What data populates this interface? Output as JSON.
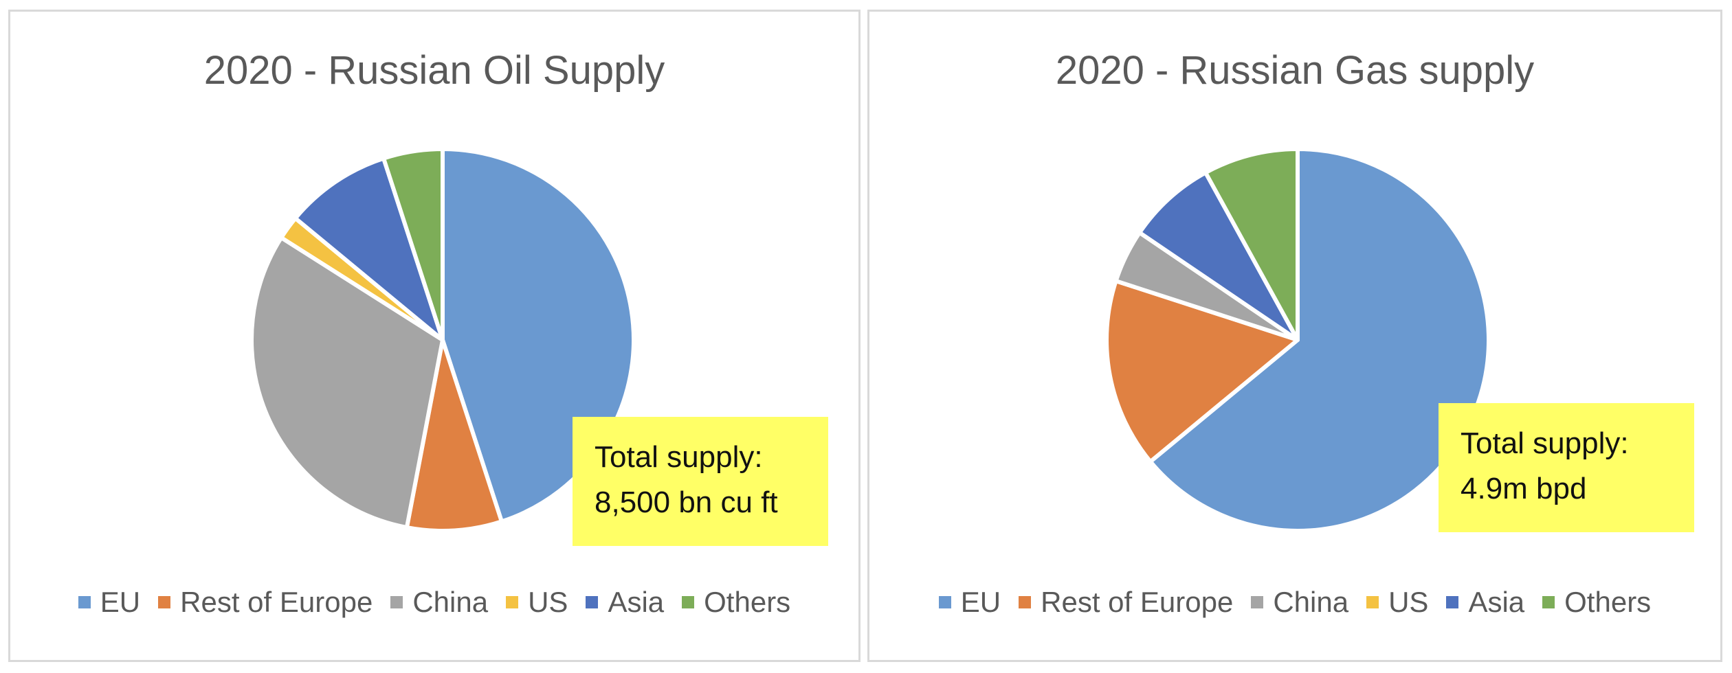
{
  "colors": {
    "EU": "#6a99d0",
    "Rest of Europe": "#e08142",
    "China": "#a5a5a5",
    "US": "#f4c242",
    "Asia": "#4f72be",
    "Others": "#7dad58"
  },
  "chart_data": [
    {
      "type": "pie",
      "title": "2020 - Russian Oil Supply",
      "categories": [
        "EU",
        "Rest of Europe",
        "China",
        "US",
        "Asia",
        "Others"
      ],
      "values": [
        45,
        8,
        31,
        2,
        9,
        5
      ],
      "annotation": {
        "line1": "Total supply:",
        "line2": "8,500 bn cu ft"
      },
      "legend_position": "bottom"
    },
    {
      "type": "pie",
      "title": "2020 - Russian Gas supply",
      "categories": [
        "EU",
        "Rest of Europe",
        "China",
        "US",
        "Asia",
        "Others"
      ],
      "values": [
        64,
        16,
        4.5,
        0,
        7.5,
        8
      ],
      "annotation": {
        "line1": "Total supply:",
        "line2": "4.9m bpd"
      },
      "legend_position": "bottom"
    }
  ]
}
